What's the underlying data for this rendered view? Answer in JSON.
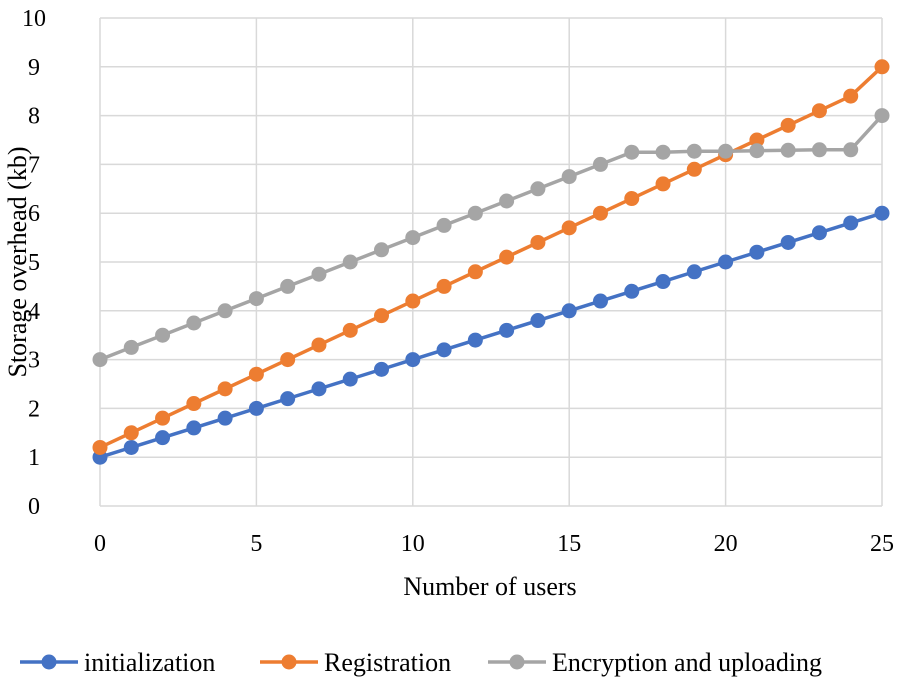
{
  "chart_data": {
    "type": "line",
    "title": "",
    "xlabel": "Number of users",
    "ylabel": "Storage overhead (kb)",
    "xlim": [
      0,
      25
    ],
    "ylim": [
      0,
      10
    ],
    "x_ticks": [
      0,
      5,
      10,
      15,
      20,
      25
    ],
    "y_ticks": [
      0,
      1,
      2,
      3,
      4,
      5,
      6,
      7,
      8,
      9,
      10
    ],
    "grid": true,
    "legend_position": "bottom",
    "x": [
      0,
      1,
      2,
      3,
      4,
      5,
      6,
      7,
      8,
      9,
      10,
      11,
      12,
      13,
      14,
      15,
      16,
      17,
      18,
      19,
      20,
      21,
      22,
      23,
      24,
      25
    ],
    "series": [
      {
        "name": "initialization",
        "color": "#4472C4",
        "values": [
          1.0,
          1.2,
          1.4,
          1.6,
          1.8,
          2.0,
          2.2,
          2.4,
          2.6,
          2.8,
          3.0,
          3.2,
          3.4,
          3.6,
          3.8,
          4.0,
          4.2,
          4.4,
          4.6,
          4.8,
          5.0,
          5.2,
          5.4,
          5.6,
          5.8,
          6.0
        ]
      },
      {
        "name": "Registration",
        "color": "#ED7D31",
        "values": [
          1.2,
          1.5,
          1.8,
          2.1,
          2.4,
          2.7,
          3.0,
          3.3,
          3.6,
          3.9,
          4.2,
          4.5,
          4.8,
          5.1,
          5.4,
          5.7,
          6.0,
          6.3,
          6.6,
          6.9,
          7.2,
          7.5,
          7.8,
          8.1,
          8.4,
          9.0
        ]
      },
      {
        "name": "Encryption and uploading",
        "color": "#A5A5A5",
        "values": [
          3.0,
          3.25,
          3.5,
          3.75,
          4.0,
          4.25,
          4.5,
          4.75,
          5.0,
          5.25,
          5.5,
          5.75,
          6.0,
          6.25,
          6.5,
          6.75,
          7.0,
          7.25,
          7.25,
          7.27,
          7.27,
          7.28,
          7.29,
          7.3,
          7.3,
          8.0
        ]
      }
    ]
  }
}
